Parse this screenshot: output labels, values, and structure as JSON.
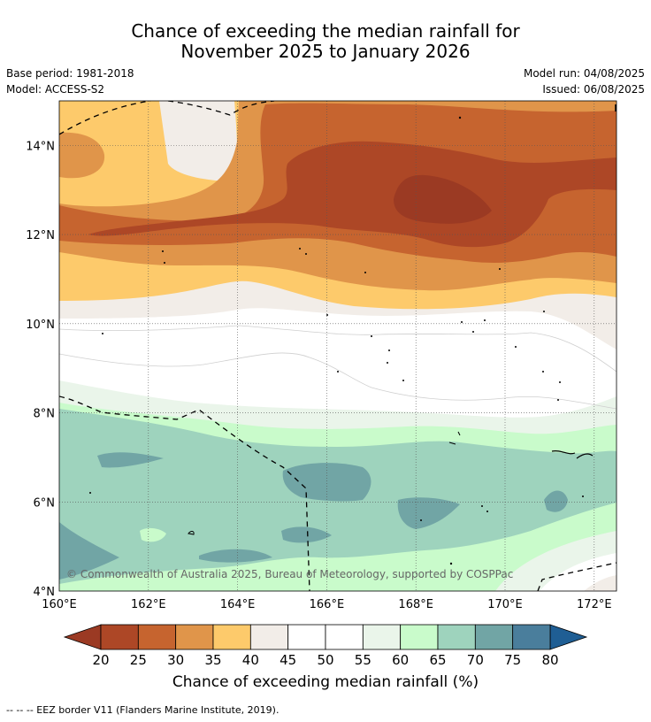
{
  "title": {
    "line1": "Chance of exceeding the median rainfall for",
    "line2": "November 2025 to January 2026"
  },
  "meta": {
    "base_period": "Base period: 1981-2018",
    "model": "Model: ACCESS-S2",
    "model_run": "Model run: 04/08/2025",
    "issued": "Issued: 06/08/2025"
  },
  "map": {
    "lon_range": [
      160,
      172.5
    ],
    "lat_range": [
      4,
      15
    ],
    "lon_ticks": [
      "160°E",
      "162°E",
      "164°E",
      "166°E",
      "168°E",
      "170°E",
      "172°E"
    ],
    "lat_ticks": [
      "4°N",
      "6°N",
      "8°N",
      "10°N",
      "12°N",
      "14°N"
    ],
    "copyright": "© Commonwealth of Australia 2025, Bureau of Meteorology, supported by COSPPac",
    "grid": true
  },
  "colorbar": {
    "ticks": [
      "20",
      "25",
      "30",
      "35",
      "40",
      "45",
      "50",
      "55",
      "60",
      "65",
      "70",
      "75",
      "80"
    ],
    "colors": [
      "#ad4726",
      "#c6642f",
      "#e0954a",
      "#fdca6b",
      "#f2ede8",
      "#ffffff",
      "#ffffff",
      "#eaf5ea",
      "#c9fbcb",
      "#9ed3bd",
      "#71a5a5",
      "#4a7e9c"
    ],
    "low_extend_color": "#9b3a23",
    "high_extend_color": "#1f5e94",
    "label": "Chance of exceeding median rainfall (%)"
  },
  "legend": {
    "eez": "--  --  -- EEZ border V11 (Flanders Marine Institute, 2019)."
  }
}
